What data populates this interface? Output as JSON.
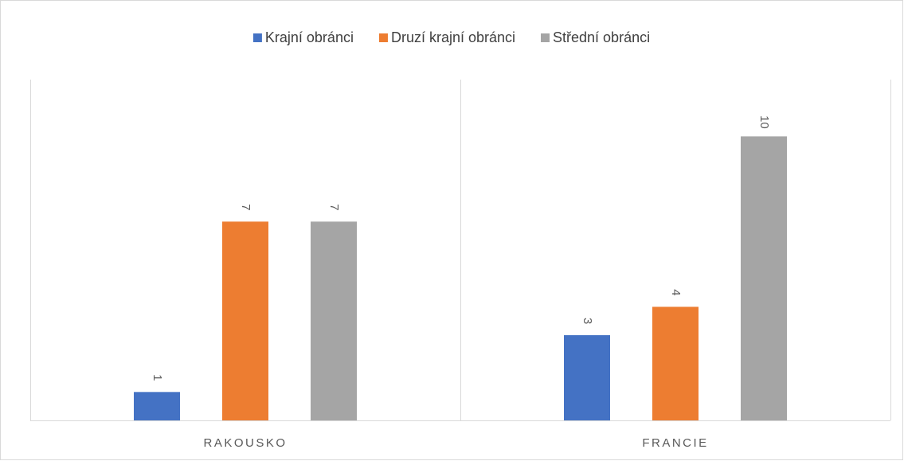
{
  "chart_data": {
    "type": "bar",
    "categories": [
      "RAKOUSKO",
      "FRANCIE"
    ],
    "series": [
      {
        "name": "Krajní obránci",
        "color": "#4472c4",
        "values": [
          1,
          3
        ]
      },
      {
        "name": "Druzí krajní obránci",
        "color": "#ed7d31",
        "values": [
          7,
          4
        ]
      },
      {
        "name": "Střední obránci",
        "color": "#a5a5a5",
        "values": [
          7,
          10
        ]
      }
    ],
    "ylim": [
      0,
      12
    ],
    "legend": "top"
  }
}
